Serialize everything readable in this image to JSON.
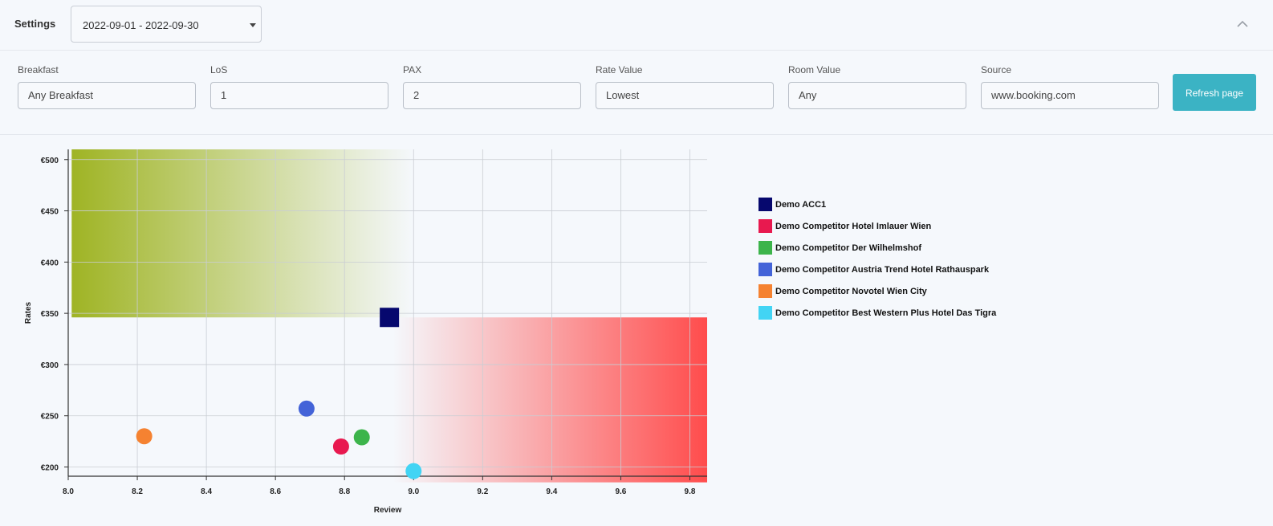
{
  "settings": {
    "label": "Settings",
    "date_range": "2022-09-01 - 2022-09-30",
    "collapse_icon": "chevron-up-icon"
  },
  "filters": [
    {
      "label": "Breakfast",
      "value": "Any Breakfast"
    },
    {
      "label": "LoS",
      "value": "1"
    },
    {
      "label": "PAX",
      "value": "2"
    },
    {
      "label": "Rate Value",
      "value": "Lowest"
    },
    {
      "label": "Room Value",
      "value": "Any"
    },
    {
      "label": "Source",
      "value": "www.booking.com"
    }
  ],
  "refresh_label": "Refresh page",
  "chart_data": {
    "type": "scatter",
    "xlabel": "Review",
    "ylabel": "Rates",
    "xlim": [
      8.0,
      9.85
    ],
    "ylim": [
      191,
      510
    ],
    "x_ticks": [
      "8.0",
      "8.2",
      "8.4",
      "8.6",
      "8.8",
      "9.0",
      "9.2",
      "9.4",
      "9.6",
      "9.8"
    ],
    "y_ticks": [
      "€500",
      "€450",
      "€400",
      "€350",
      "€300",
      "€250",
      "€200"
    ],
    "grid": true,
    "legend_position": "right",
    "zones": [
      {
        "name": "high-rate-low-review",
        "x_range": [
          8.01,
          9.0
        ],
        "y_range": [
          346,
          510
        ],
        "color": "#9fb424"
      },
      {
        "name": "low-rate-high-review",
        "x_range": [
          8.94,
          9.85
        ],
        "y_range": [
          185,
          346
        ],
        "color": "#ff4c4c"
      }
    ],
    "series": [
      {
        "name": "Demo ACC1",
        "x": 8.93,
        "y": 346,
        "color": "#06086e",
        "marker": "square"
      },
      {
        "name": "Demo Competitor Hotel Imlauer Wien",
        "x": 8.79,
        "y": 220,
        "color": "#e8194f",
        "marker": "circle"
      },
      {
        "name": "Demo Competitor Der Wilhelmshof",
        "x": 8.85,
        "y": 229,
        "color": "#3cb44b",
        "marker": "circle"
      },
      {
        "name": "Demo Competitor Austria Trend Hotel Rathauspark",
        "x": 8.69,
        "y": 257,
        "color": "#4363d8",
        "marker": "circle"
      },
      {
        "name": "Demo Competitor Novotel Wien City",
        "x": 8.22,
        "y": 230,
        "color": "#f58231",
        "marker": "circle"
      },
      {
        "name": "Demo Competitor Best Western Plus Hotel Das Tigra",
        "x": 9.0,
        "y": 196,
        "color": "#42d4f4",
        "marker": "circle"
      }
    ]
  }
}
